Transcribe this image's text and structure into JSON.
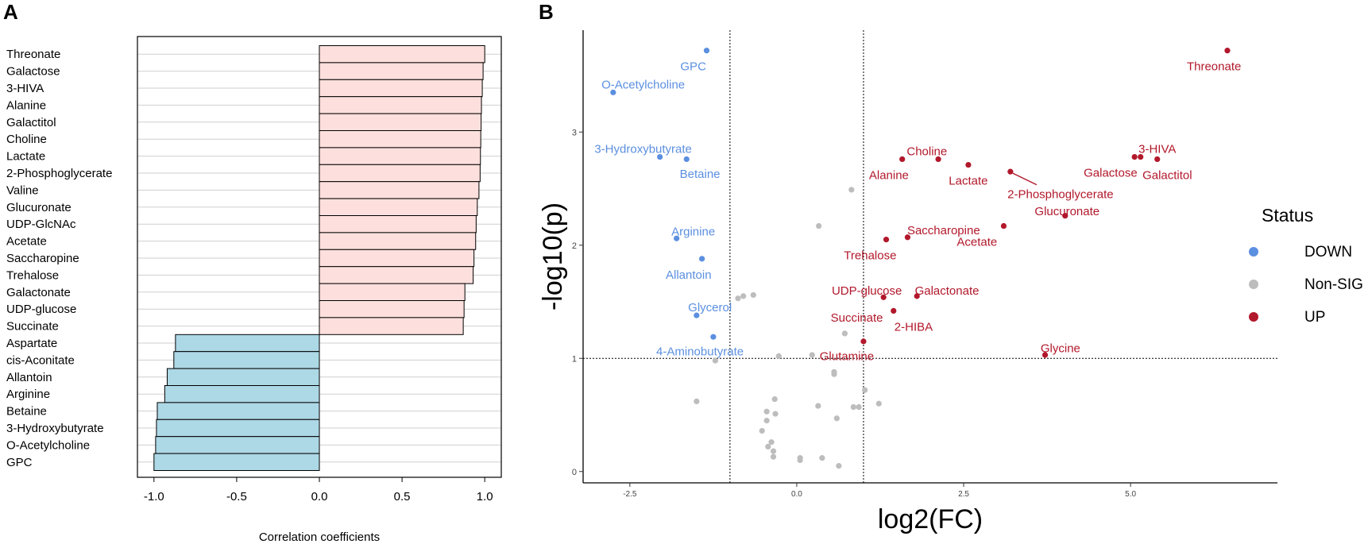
{
  "panels": {
    "a_label": "A",
    "b_label": "B"
  },
  "chart_data": [
    {
      "panel": "A",
      "type": "bar",
      "orientation": "horizontal",
      "xlabel": "Correlation coefficients",
      "ylabel": "",
      "xlim": [
        -1.1,
        1.1
      ],
      "xticks": [
        -1.0,
        -0.5,
        0.0,
        0.5,
        1.0
      ],
      "xtick_labels": [
        "-1.0",
        "-0.5",
        "0.0",
        "0.5",
        "1.0"
      ],
      "categories": [
        "Threonate",
        "Galactose",
        "3-HIVA",
        "Alanine",
        "Galactitol",
        "Choline",
        "Lactate",
        "2-Phosphoglycerate",
        "Valine",
        "Glucuronate",
        "UDP-GlcNAc",
        "Acetate",
        "Saccharopine",
        "Trehalose",
        "Galactonate",
        "UDP-glucose",
        "Succinate",
        "Aspartate",
        "cis-Aconitate",
        "Allantoin",
        "Arginine",
        "Betaine",
        "3-Hydroxybutyrate",
        "O-Acetylcholine",
        "GPC"
      ],
      "values": [
        1.0,
        0.99,
        0.985,
        0.98,
        0.978,
        0.976,
        0.974,
        0.972,
        0.965,
        0.955,
        0.948,
        0.945,
        0.935,
        0.93,
        0.88,
        0.875,
        0.87,
        -0.87,
        -0.88,
        -0.92,
        -0.935,
        -0.98,
        -0.985,
        -0.99,
        -1.0
      ],
      "colors": {
        "positive": "#fde0dd",
        "negative": "#add8e6"
      }
    },
    {
      "panel": "B",
      "type": "scatter",
      "xlabel": "log2(FC)",
      "ylabel": "-log10(p)",
      "xlim": [
        -3.2,
        7.2
      ],
      "ylim": [
        -0.1,
        3.9
      ],
      "xticks": [
        -2.5,
        0.0,
        2.5,
        5.0
      ],
      "xtick_labels": [
        "-2.5",
        "0.0",
        "2.5",
        "5.0"
      ],
      "yticks": [
        0,
        1,
        2,
        3
      ],
      "ytick_labels": [
        "0",
        "1",
        "2",
        "3"
      ],
      "vlines": [
        -1,
        1
      ],
      "hlines": [
        1
      ],
      "legend": {
        "title": "Status",
        "position": "right",
        "entries": [
          {
            "label": "DOWN",
            "color": "#5b8fe0"
          },
          {
            "label": "Non-SIG",
            "color": "#bdbdbd"
          },
          {
            "label": "UP",
            "color": "#b2182b"
          }
        ]
      },
      "labeled_points": [
        {
          "label": "GPC",
          "x": -1.35,
          "y": 3.72,
          "status": "DOWN",
          "lx": -1.55,
          "ly": 3.58,
          "anchor": "middle"
        },
        {
          "label": "O-Acetylcholine",
          "x": -2.75,
          "y": 3.35,
          "status": "DOWN",
          "lx": -2.3,
          "ly": 3.42,
          "anchor": "middle"
        },
        {
          "label": "3-Hydroxybutyrate",
          "x": -2.05,
          "y": 2.78,
          "status": "DOWN",
          "lx": -2.3,
          "ly": 2.85,
          "anchor": "middle"
        },
        {
          "label": "Betaine",
          "x": -1.65,
          "y": 2.76,
          "status": "DOWN",
          "lx": -1.45,
          "ly": 2.63,
          "anchor": "middle"
        },
        {
          "label": "Arginine",
          "x": -1.8,
          "y": 2.06,
          "status": "DOWN",
          "lx": -1.55,
          "ly": 2.12,
          "anchor": "middle"
        },
        {
          "label": "Allantoin",
          "x": -1.42,
          "y": 1.88,
          "status": "DOWN",
          "lx": -1.62,
          "ly": 1.74,
          "anchor": "middle"
        },
        {
          "label": "Glycerol",
          "x": -1.5,
          "y": 1.38,
          "status": "DOWN",
          "lx": -1.3,
          "ly": 1.45,
          "anchor": "middle"
        },
        {
          "label": "4-Aminobutyrate",
          "x": -1.25,
          "y": 1.19,
          "status": "DOWN",
          "lx": -1.45,
          "ly": 1.06,
          "anchor": "middle"
        },
        {
          "label": "Threonate",
          "x": 6.45,
          "y": 3.72,
          "status": "UP",
          "lx": 6.25,
          "ly": 3.58,
          "anchor": "middle"
        },
        {
          "label": "Choline",
          "x": 2.12,
          "y": 2.76,
          "status": "UP",
          "lx": 1.95,
          "ly": 2.83,
          "anchor": "middle"
        },
        {
          "label": "Alanine",
          "x": 1.58,
          "y": 2.76,
          "status": "UP",
          "lx": 1.38,
          "ly": 2.62,
          "anchor": "middle"
        },
        {
          "label": "Lactate",
          "x": 2.57,
          "y": 2.71,
          "status": "UP",
          "lx": 2.57,
          "ly": 2.57,
          "anchor": "middle"
        },
        {
          "label": "2-Phosphoglycerate",
          "x": 3.2,
          "y": 2.65,
          "status": "UP",
          "lx": 3.95,
          "ly": 2.45,
          "anchor": "middle",
          "leader": true
        },
        {
          "label": "3-HIVA",
          "x": 5.15,
          "y": 2.78,
          "status": "UP",
          "lx": 5.4,
          "ly": 2.85,
          "anchor": "middle"
        },
        {
          "label": "Galactose",
          "x": 5.06,
          "y": 2.78,
          "status": "UP",
          "lx": 4.7,
          "ly": 2.64,
          "anchor": "middle"
        },
        {
          "label": "Galactitol",
          "x": 5.4,
          "y": 2.76,
          "status": "UP",
          "lx": 5.55,
          "ly": 2.62,
          "anchor": "middle"
        },
        {
          "label": "Glucuronate",
          "x": 4.02,
          "y": 2.26,
          "status": "UP",
          "lx": 4.05,
          "ly": 2.3,
          "anchor": "middle"
        },
        {
          "label": "Saccharopine",
          "x": 1.66,
          "y": 2.07,
          "status": "UP",
          "lx": 2.2,
          "ly": 2.13,
          "anchor": "middle"
        },
        {
          "label": "Acetate",
          "x": 3.1,
          "y": 2.17,
          "status": "UP",
          "lx": 2.7,
          "ly": 2.03,
          "anchor": "middle"
        },
        {
          "label": "Trehalose",
          "x": 1.34,
          "y": 2.05,
          "status": "UP",
          "lx": 1.1,
          "ly": 1.91,
          "anchor": "middle"
        },
        {
          "label": "UDP-glucose",
          "x": 1.3,
          "y": 1.54,
          "status": "UP",
          "lx": 1.05,
          "ly": 1.6,
          "anchor": "middle"
        },
        {
          "label": "Galactonate",
          "x": 1.8,
          "y": 1.55,
          "status": "UP",
          "lx": 2.25,
          "ly": 1.6,
          "anchor": "middle"
        },
        {
          "label": "Succinate",
          "x": 1.45,
          "y": 1.42,
          "status": "UP",
          "lx": 0.9,
          "ly": 1.36,
          "anchor": "middle"
        },
        {
          "label": "2-HIBA",
          "x": 1.45,
          "y": 1.42,
          "status": "UP",
          "lx": 1.75,
          "ly": 1.28,
          "anchor": "middle",
          "no_marker": true
        },
        {
          "label": "Glutamine",
          "x": 1.0,
          "y": 1.15,
          "status": "UP",
          "lx": 0.75,
          "ly": 1.02,
          "anchor": "middle"
        },
        {
          "label": "Glycine",
          "x": 3.72,
          "y": 1.03,
          "status": "UP",
          "lx": 3.95,
          "ly": 1.09,
          "anchor": "middle"
        }
      ],
      "nonsig_points": [
        {
          "x": 0.82,
          "y": 2.49
        },
        {
          "x": 0.33,
          "y": 2.17
        },
        {
          "x": -0.88,
          "y": 1.53
        },
        {
          "x": -0.8,
          "y": 1.55
        },
        {
          "x": -0.65,
          "y": 1.56
        },
        {
          "x": 0.72,
          "y": 1.22
        },
        {
          "x": -1.22,
          "y": 0.98
        },
        {
          "x": -0.27,
          "y": 1.02
        },
        {
          "x": 0.23,
          "y": 1.03
        },
        {
          "x": 0.56,
          "y": 0.88
        },
        {
          "x": 0.56,
          "y": 0.86
        },
        {
          "x": 1.02,
          "y": 0.72
        },
        {
          "x": -0.33,
          "y": 0.64
        },
        {
          "x": -1.5,
          "y": 0.62
        },
        {
          "x": 1.23,
          "y": 0.6
        },
        {
          "x": 0.32,
          "y": 0.58
        },
        {
          "x": 0.85,
          "y": 0.57
        },
        {
          "x": 0.93,
          "y": 0.57
        },
        {
          "x": -0.45,
          "y": 0.53
        },
        {
          "x": -0.32,
          "y": 0.51
        },
        {
          "x": -0.45,
          "y": 0.45
        },
        {
          "x": 0.6,
          "y": 0.47
        },
        {
          "x": -0.52,
          "y": 0.36
        },
        {
          "x": -0.38,
          "y": 0.26
        },
        {
          "x": -0.43,
          "y": 0.22
        },
        {
          "x": -0.35,
          "y": 0.13
        },
        {
          "x": -0.35,
          "y": 0.18
        },
        {
          "x": 0.05,
          "y": 0.12
        },
        {
          "x": 0.05,
          "y": 0.1
        },
        {
          "x": 0.38,
          "y": 0.12
        },
        {
          "x": 0.63,
          "y": 0.05
        }
      ]
    }
  ]
}
